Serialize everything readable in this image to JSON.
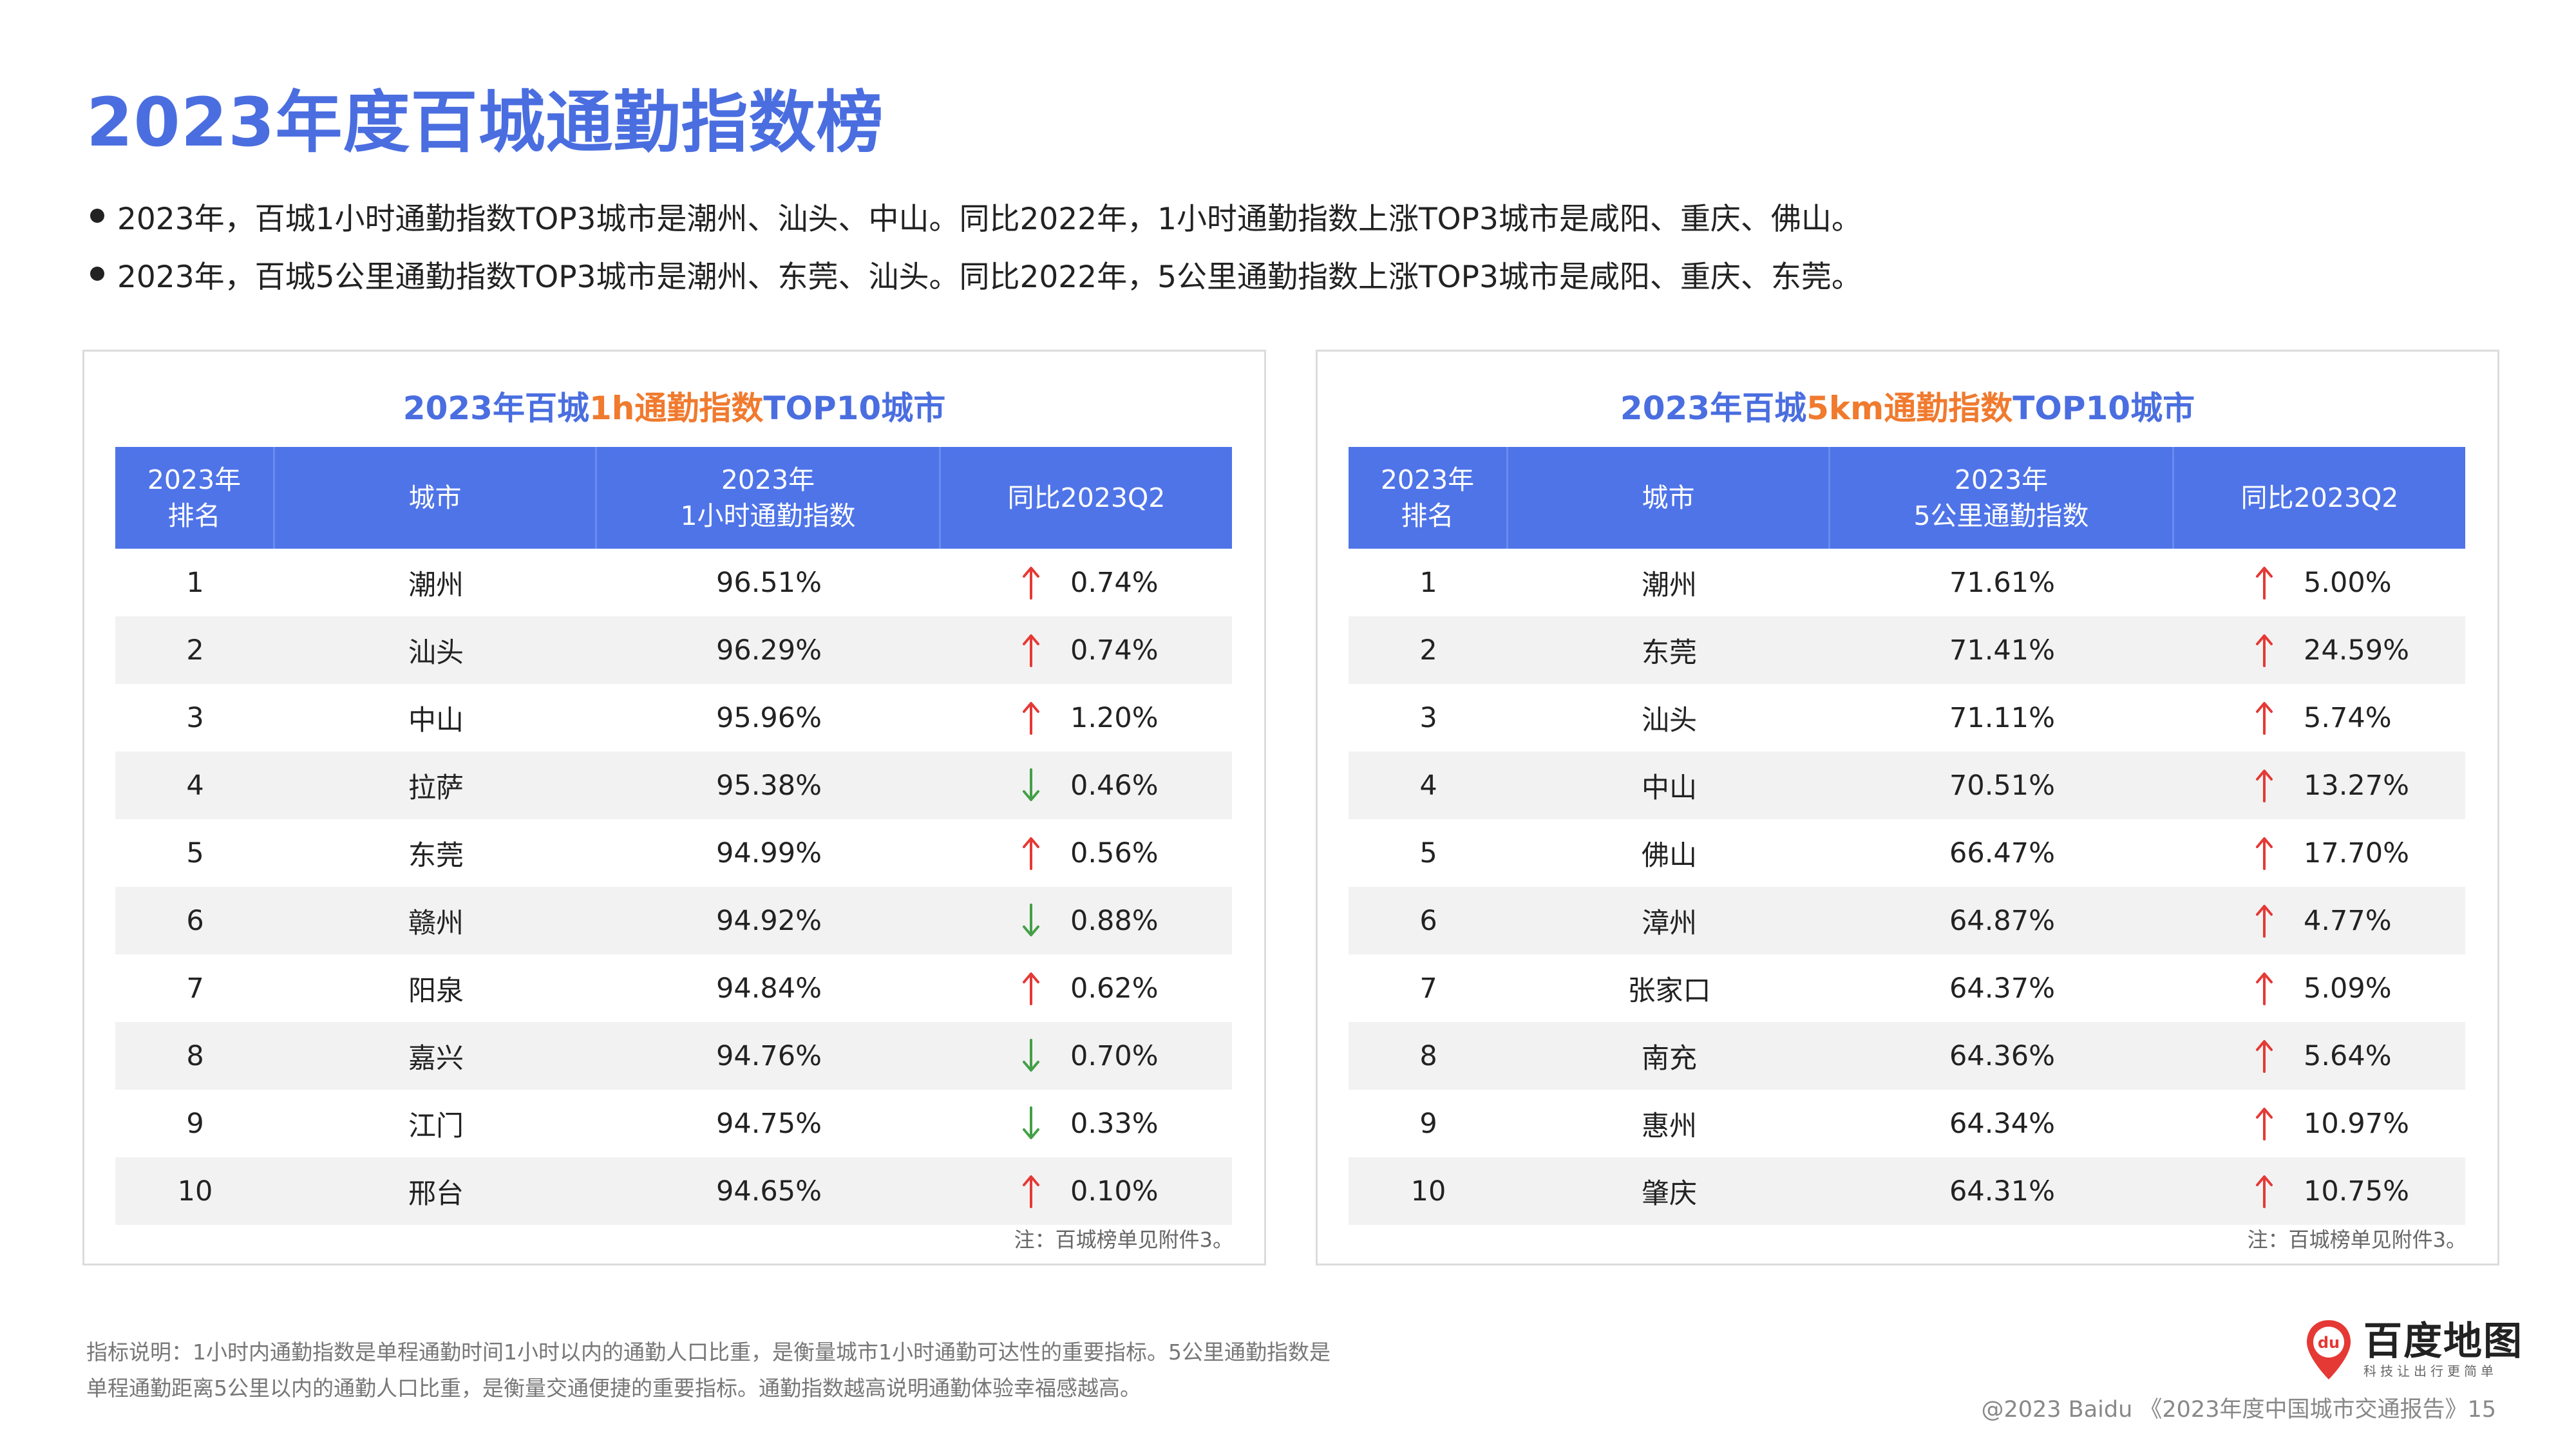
{
  "page": {
    "title": "2023年度百城通勤指数榜",
    "bullets": [
      "2023年，百城1小时通勤指数TOP3城市是潮州、汕头、中山。同比2022年，1小时通勤指数上涨TOP3城市是咸阳、重庆、佛山。",
      "2023年，百城5公里通勤指数TOP3城市是潮州、东莞、汕头。同比2022年，5公里通勤指数上涨TOP3城市是咸阳、重庆、东莞。"
    ]
  },
  "colors": {
    "accent": "#4a6ee0",
    "highlight": "#f07a2e",
    "header_bg": "#4f74e8",
    "up": "#e53935",
    "down": "#43a047"
  },
  "tables": [
    {
      "title_pre": "2023年百城",
      "title_accent": "1h通勤指数",
      "title_post": "TOP10城市",
      "headers": {
        "rank_l1": "2023年",
        "rank_l2": "排名",
        "city": "城市",
        "index_l1": "2023年",
        "index_l2": "1小时通勤指数",
        "change": "同比2023Q2"
      },
      "rows": [
        {
          "rank": "1",
          "city": "潮州",
          "index": "96.51%",
          "dir": "up",
          "change": "0.74%"
        },
        {
          "rank": "2",
          "city": "汕头",
          "index": "96.29%",
          "dir": "up",
          "change": "0.74%"
        },
        {
          "rank": "3",
          "city": "中山",
          "index": "95.96%",
          "dir": "up",
          "change": "1.20%"
        },
        {
          "rank": "4",
          "city": "拉萨",
          "index": "95.38%",
          "dir": "down",
          "change": "0.46%"
        },
        {
          "rank": "5",
          "city": "东莞",
          "index": "94.99%",
          "dir": "up",
          "change": "0.56%"
        },
        {
          "rank": "6",
          "city": "赣州",
          "index": "94.92%",
          "dir": "down",
          "change": "0.88%"
        },
        {
          "rank": "7",
          "city": "阳泉",
          "index": "94.84%",
          "dir": "up",
          "change": "0.62%"
        },
        {
          "rank": "8",
          "city": "嘉兴",
          "index": "94.76%",
          "dir": "down",
          "change": "0.70%"
        },
        {
          "rank": "9",
          "city": "江门",
          "index": "94.75%",
          "dir": "down",
          "change": "0.33%"
        },
        {
          "rank": "10",
          "city": "邢台",
          "index": "94.65%",
          "dir": "up",
          "change": "0.10%"
        }
      ],
      "note": "注：百城榜单见附件3。"
    },
    {
      "title_pre": "2023年百城",
      "title_accent": "5km通勤指数",
      "title_post": "TOP10城市",
      "headers": {
        "rank_l1": "2023年",
        "rank_l2": "排名",
        "city": "城市",
        "index_l1": "2023年",
        "index_l2": "5公里通勤指数",
        "change": "同比2023Q2"
      },
      "rows": [
        {
          "rank": "1",
          "city": "潮州",
          "index": "71.61%",
          "dir": "up",
          "change": "5.00%"
        },
        {
          "rank": "2",
          "city": "东莞",
          "index": "71.41%",
          "dir": "up",
          "change": "24.59%"
        },
        {
          "rank": "3",
          "city": "汕头",
          "index": "71.11%",
          "dir": "up",
          "change": "5.74%"
        },
        {
          "rank": "4",
          "city": "中山",
          "index": "70.51%",
          "dir": "up",
          "change": "13.27%"
        },
        {
          "rank": "5",
          "city": "佛山",
          "index": "66.47%",
          "dir": "up",
          "change": "17.70%"
        },
        {
          "rank": "6",
          "city": "漳州",
          "index": "64.87%",
          "dir": "up",
          "change": "4.77%"
        },
        {
          "rank": "7",
          "city": "张家口",
          "index": "64.37%",
          "dir": "up",
          "change": "5.09%"
        },
        {
          "rank": "8",
          "city": "南充",
          "index": "64.36%",
          "dir": "up",
          "change": "5.64%"
        },
        {
          "rank": "9",
          "city": "惠州",
          "index": "64.34%",
          "dir": "up",
          "change": "10.97%"
        },
        {
          "rank": "10",
          "city": "肇庆",
          "index": "64.31%",
          "dir": "up",
          "change": "10.75%"
        }
      ],
      "note": "注：百城榜单见附件3。"
    }
  ],
  "footer": {
    "footnote": "指标说明：1小时内通勤指数是单程通勤时间1小时以内的通勤人口比重，是衡量城市1小时通勤可达性的重要指标。5公里通勤指数是单程通勤距离5公里以内的通勤人口比重，是衡量交通便捷的重要指标。通勤指数越高说明通勤体验幸福感越高。",
    "logo_badge": "du",
    "logo_main": "百度地图",
    "logo_sub": "科技让出行更简单",
    "copyright": "@2023 Baidu 《2023年度中国城市交通报告》15"
  }
}
